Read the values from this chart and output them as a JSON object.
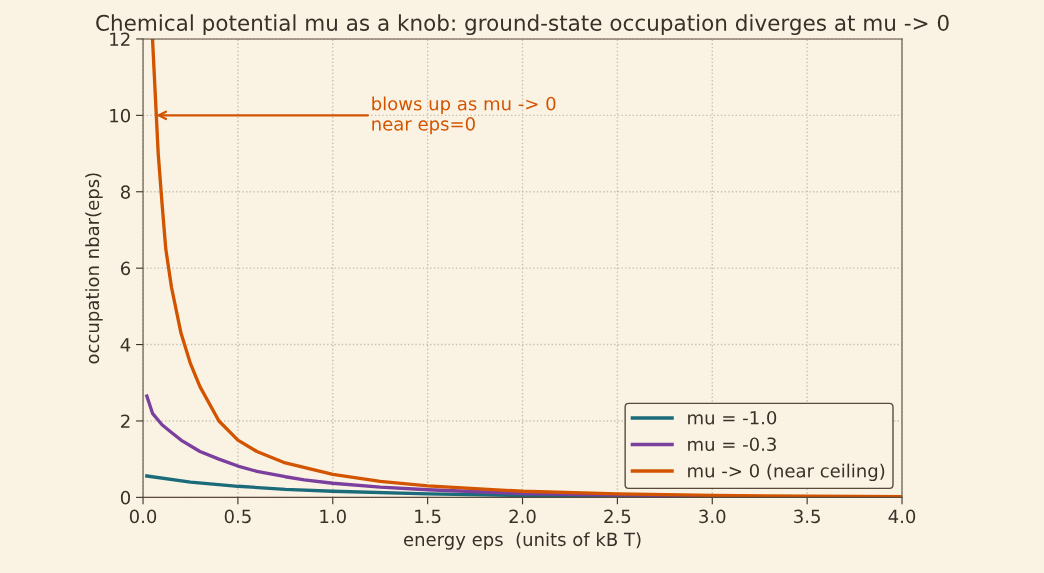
{
  "chart_data": {
    "type": "line",
    "title": "Chemical potential mu as a knob: ground-state occupation diverges at mu -> 0",
    "xlabel": "energy eps  (units of kB T)",
    "ylabel": "occupation nbar(eps)",
    "xlim": [
      0,
      4
    ],
    "xticks": [
      {
        "value": 0,
        "label": "0.0"
      },
      0.5,
      {
        "value": 1,
        "label": "1.0"
      },
      1.5,
      {
        "value": 2,
        "label": "2.0"
      },
      2.5,
      {
        "value": 3,
        "label": "3.0"
      },
      3.5,
      {
        "value": 4,
        "label": "4.0"
      }
    ],
    "ylim": [
      0,
      12
    ],
    "yticks": [
      0,
      2,
      4,
      6,
      8,
      10,
      12
    ],
    "grid": true,
    "legend": "bottom right",
    "line_style": "solid",
    "marker": "none",
    "series": [
      {
        "name": "mu = -1.0",
        "color": "#1b6b7a",
        "x": [
          0.02,
          0.25,
          0.5,
          0.75,
          1.0,
          1.5,
          2.0,
          2.5,
          3.0
        ],
        "values": [
          0.56,
          0.4,
          0.29,
          0.21,
          0.16,
          0.09,
          0.05,
          0.03,
          0.02
        ]
      },
      {
        "name": "mu = -0.3",
        "color": "#7b3f9e",
        "x": [
          0.02,
          0.05,
          0.1,
          0.15,
          0.2,
          0.3,
          0.4,
          0.5,
          0.6,
          0.75,
          0.85,
          1.0,
          1.25,
          1.5,
          2.0,
          2.5,
          3.0
        ],
        "values": [
          2.65,
          2.2,
          1.9,
          1.7,
          1.5,
          1.2,
          1.0,
          0.82,
          0.68,
          0.54,
          0.46,
          0.37,
          0.27,
          0.2,
          0.1,
          0.06,
          0.04
        ]
      },
      {
        "name": "mu -> 0 (near ceiling)",
        "color": "#d35400",
        "x": [
          0.05,
          0.06,
          0.07,
          0.08,
          0.1,
          0.12,
          0.15,
          0.2,
          0.25,
          0.3,
          0.4,
          0.5,
          0.6,
          0.75,
          1.0,
          1.25,
          1.5,
          2.0,
          2.5,
          3.0,
          3.5,
          4.0
        ],
        "values": [
          12,
          11,
          10,
          9,
          7.7,
          6.5,
          5.5,
          4.3,
          3.5,
          2.9,
          2.0,
          1.5,
          1.2,
          0.9,
          0.6,
          0.42,
          0.3,
          0.16,
          0.09,
          0.05,
          0.03,
          0.02
        ]
      }
    ],
    "annotations": [
      {
        "text": "blows up as mu -> 0\nnear eps=0",
        "x": 0.07,
        "y": 10
      }
    ]
  }
}
